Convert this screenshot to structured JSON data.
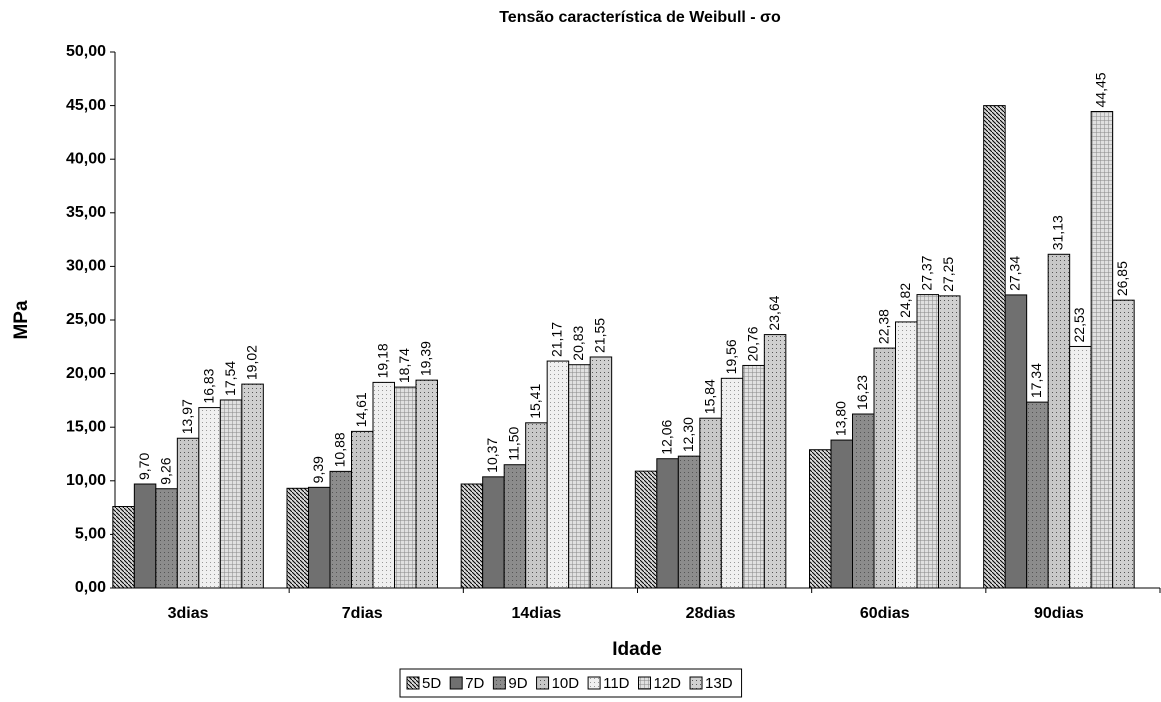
{
  "chart_data": {
    "type": "bar",
    "title": "Tensão característica de Weibull - σo",
    "xlabel": "Idade",
    "ylabel": "MPa",
    "categories": [
      "3dias",
      "7dias",
      "14dias",
      "28dias",
      "60dias",
      "90dias"
    ],
    "series": [
      {
        "name": "5D",
        "color": "#d9d9d9",
        "values": [
          7.6,
          9.3,
          9.7,
          10.9,
          12.9,
          45.0
        ]
      },
      {
        "name": "7D",
        "color": "#707070",
        "values": [
          9.7,
          9.39,
          10.37,
          12.06,
          13.8,
          27.34
        ],
        "value_labels": [
          "9,70",
          "9,39",
          "10,37",
          "12,06",
          "13,80",
          "27,34"
        ]
      },
      {
        "name": "9D",
        "color": "#8c8c8c",
        "values": [
          9.26,
          10.88,
          11.5,
          12.3,
          16.23,
          17.34
        ],
        "value_labels": [
          "9,26",
          "10,88",
          "11,50",
          "12,30",
          "16,23",
          "17,34"
        ]
      },
      {
        "name": "10D",
        "color": "#c8c8c8",
        "values": [
          13.97,
          14.61,
          15.41,
          15.84,
          22.38,
          31.13
        ],
        "value_labels": [
          "13,97",
          "14,61",
          "15,41",
          "15,84",
          "22,38",
          "31,13"
        ]
      },
      {
        "name": "11D",
        "color": "#f0f0f0",
        "values": [
          16.83,
          19.18,
          21.17,
          19.56,
          24.82,
          22.53
        ],
        "value_labels": [
          "16,83",
          "19,18",
          "21,17",
          "19,56",
          "24,82",
          "22,53"
        ]
      },
      {
        "name": "12D",
        "color": "#e0e0e0",
        "values": [
          17.54,
          18.74,
          20.83,
          20.76,
          27.37,
          44.45
        ],
        "value_labels": [
          "17,54",
          "18,74",
          "20,83",
          "20,76",
          "27,37",
          "44,45"
        ]
      },
      {
        "name": "13D",
        "color": "#d0d0d0",
        "values": [
          19.02,
          19.39,
          21.55,
          23.64,
          27.25,
          26.85
        ],
        "value_labels": [
          "19,02",
          "19,39",
          "21,55",
          "23,64",
          "27,25",
          "26,85"
        ]
      }
    ],
    "ylim": [
      0,
      50
    ],
    "yticks": [
      {
        "value": 0,
        "label": "0,00"
      },
      {
        "value": 5,
        "label": "5,00"
      },
      {
        "value": 10,
        "label": "10,00"
      },
      {
        "value": 15,
        "label": "15,00"
      },
      {
        "value": 20,
        "label": "20,00"
      },
      {
        "value": 25,
        "label": "25,00"
      },
      {
        "value": 30,
        "label": "30,00"
      },
      {
        "value": 35,
        "label": "35,00"
      },
      {
        "value": 40,
        "label": "40,00"
      },
      {
        "value": 45,
        "label": "45,00"
      },
      {
        "value": 50,
        "label": "50,00"
      }
    ],
    "legend": "bottom"
  }
}
